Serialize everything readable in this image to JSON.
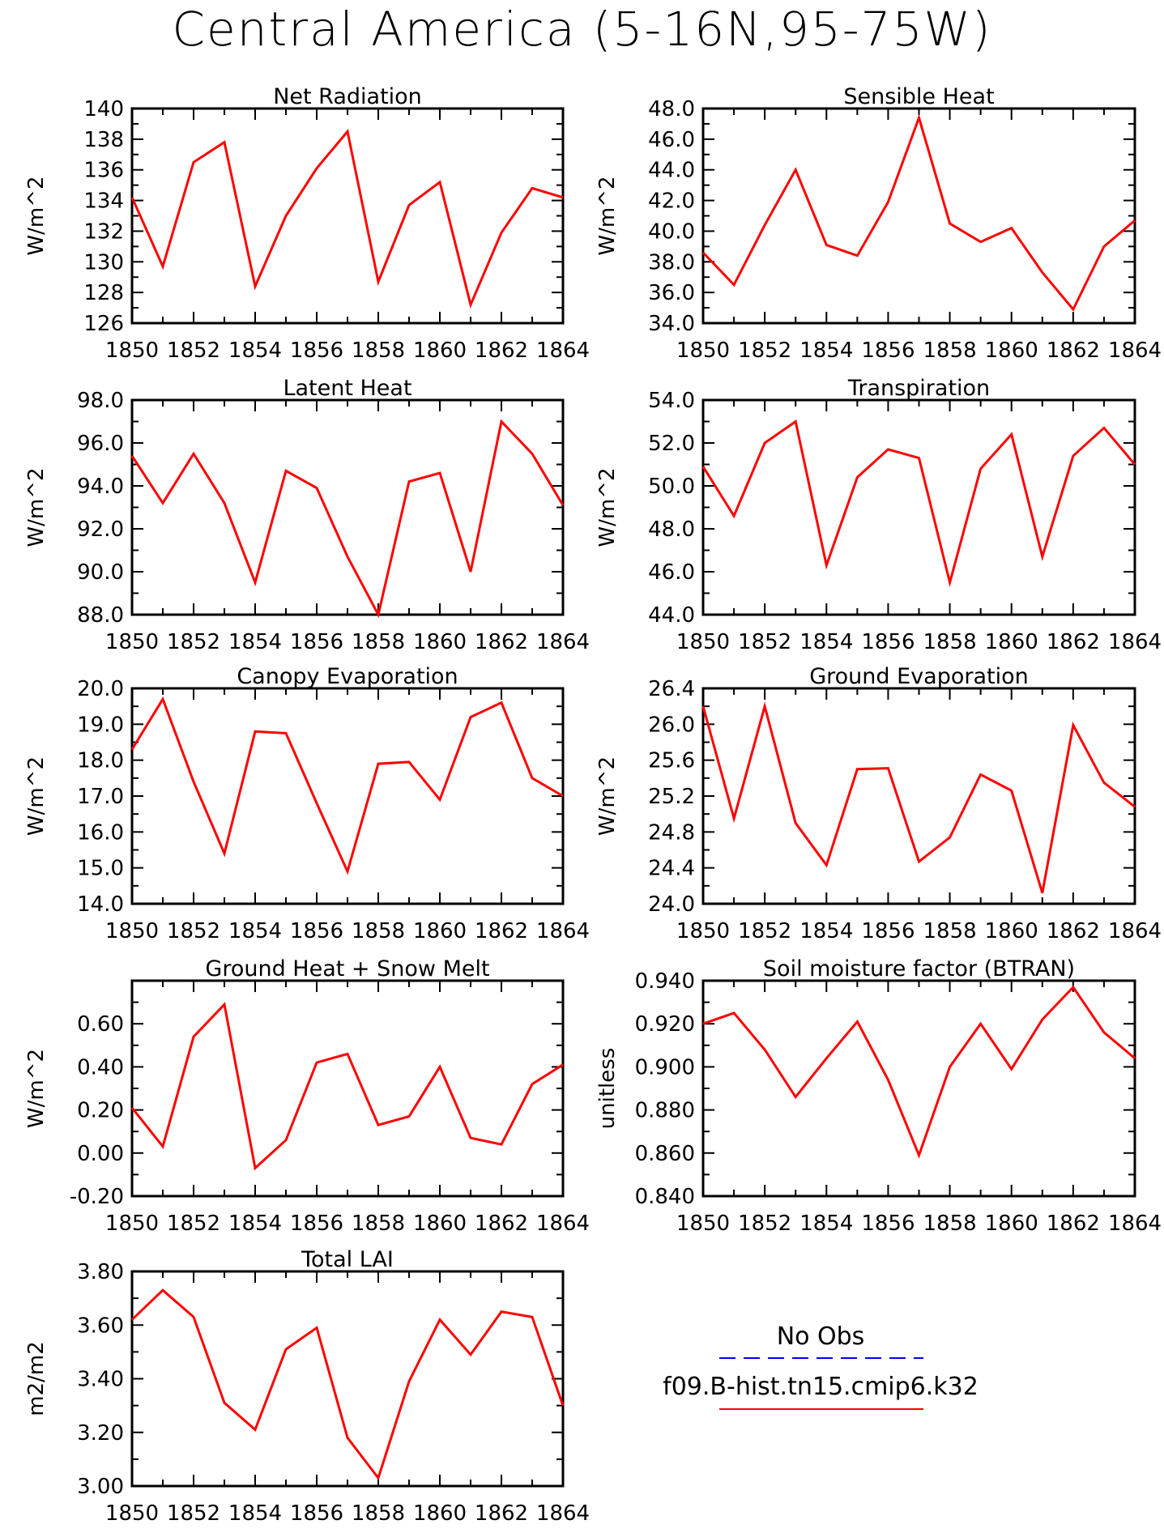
{
  "title": "Central America (5-16N,95-75W)",
  "legend": {
    "entries": [
      {
        "label": "No Obs",
        "color": "#0000ff",
        "style": "dashed"
      },
      {
        "label": "f09.B-hist.tn15.cmip6.k32",
        "color": "#ff0000",
        "style": "solid"
      }
    ]
  },
  "chart_data": [
    {
      "type": "line",
      "title": "Net Radiation",
      "ylabel": "W/m^2",
      "xlabel": "",
      "xlim": [
        1850,
        1864
      ],
      "ylim": [
        126,
        140
      ],
      "yticks": [
        126,
        128,
        130,
        132,
        134,
        136,
        138,
        140
      ],
      "ytick_labels": [
        "126",
        "128",
        "130",
        "132",
        "134",
        "136",
        "138",
        "140"
      ],
      "xticks": [
        1850,
        1852,
        1854,
        1856,
        1858,
        1860,
        1862,
        1864
      ],
      "xtick_labels": [
        "1850",
        "1852",
        "1854",
        "1856",
        "1858",
        "1860",
        "1862",
        "1864"
      ],
      "x": [
        1850,
        1851,
        1852,
        1853,
        1854,
        1855,
        1856,
        1857,
        1858,
        1859,
        1860,
        1861,
        1862,
        1863,
        1864
      ],
      "series": [
        {
          "name": "f09.B-hist.tn15.cmip6.k32",
          "color": "#ff0000",
          "values": [
            134.2,
            129.7,
            136.5,
            137.8,
            128.4,
            133.0,
            136.1,
            138.5,
            128.7,
            133.7,
            135.2,
            127.2,
            131.9,
            134.8,
            134.2
          ]
        }
      ]
    },
    {
      "type": "line",
      "title": "Sensible Heat",
      "ylabel": "W/m^2",
      "xlabel": "",
      "xlim": [
        1850,
        1864
      ],
      "ylim": [
        34,
        48
      ],
      "yticks": [
        34,
        36,
        38,
        40,
        42,
        44,
        46,
        48
      ],
      "ytick_labels": [
        "34.0",
        "36.0",
        "38.0",
        "40.0",
        "42.0",
        "44.0",
        "46.0",
        "48.0"
      ],
      "xticks": [
        1850,
        1852,
        1854,
        1856,
        1858,
        1860,
        1862,
        1864
      ],
      "xtick_labels": [
        "1850",
        "1852",
        "1854",
        "1856",
        "1858",
        "1860",
        "1862",
        "1864"
      ],
      "x": [
        1850,
        1851,
        1852,
        1853,
        1854,
        1855,
        1856,
        1857,
        1858,
        1859,
        1860,
        1861,
        1862,
        1863,
        1864
      ],
      "series": [
        {
          "name": "f09.B-hist.tn15.cmip6.k32",
          "color": "#ff0000",
          "values": [
            38.6,
            36.5,
            40.4,
            44.0,
            39.1,
            38.4,
            41.9,
            47.4,
            40.5,
            39.3,
            40.2,
            37.3,
            34.9,
            39.0,
            40.7
          ]
        }
      ]
    },
    {
      "type": "line",
      "title": "Latent Heat",
      "ylabel": "W/m^2",
      "xlabel": "",
      "xlim": [
        1850,
        1864
      ],
      "ylim": [
        88,
        98
      ],
      "yticks": [
        88,
        90,
        92,
        94,
        96,
        98
      ],
      "ytick_labels": [
        "88.0",
        "90.0",
        "92.0",
        "94.0",
        "96.0",
        "98.0"
      ],
      "xticks": [
        1850,
        1852,
        1854,
        1856,
        1858,
        1860,
        1862,
        1864
      ],
      "xtick_labels": [
        "1850",
        "1852",
        "1854",
        "1856",
        "1858",
        "1860",
        "1862",
        "1864"
      ],
      "x": [
        1850,
        1851,
        1852,
        1853,
        1854,
        1855,
        1856,
        1857,
        1858,
        1859,
        1860,
        1861,
        1862,
        1863,
        1864
      ],
      "series": [
        {
          "name": "f09.B-hist.tn15.cmip6.k32",
          "color": "#ff0000",
          "values": [
            95.4,
            93.2,
            95.5,
            93.2,
            89.5,
            94.7,
            93.9,
            90.7,
            88.0,
            94.2,
            94.6,
            90.0,
            97.0,
            95.5,
            93.1
          ]
        }
      ]
    },
    {
      "type": "line",
      "title": "Transpiration",
      "ylabel": "W/m^2",
      "xlabel": "",
      "xlim": [
        1850,
        1864
      ],
      "ylim": [
        44,
        54
      ],
      "yticks": [
        44,
        46,
        48,
        50,
        52,
        54
      ],
      "ytick_labels": [
        "44.0",
        "46.0",
        "48.0",
        "50.0",
        "52.0",
        "54.0"
      ],
      "xticks": [
        1850,
        1852,
        1854,
        1856,
        1858,
        1860,
        1862,
        1864
      ],
      "xtick_labels": [
        "1850",
        "1852",
        "1854",
        "1856",
        "1858",
        "1860",
        "1862",
        "1864"
      ],
      "x": [
        1850,
        1851,
        1852,
        1853,
        1854,
        1855,
        1856,
        1857,
        1858,
        1859,
        1860,
        1861,
        1862,
        1863,
        1864
      ],
      "series": [
        {
          "name": "f09.B-hist.tn15.cmip6.k32",
          "color": "#ff0000",
          "values": [
            50.9,
            48.6,
            52.0,
            53.0,
            46.3,
            50.4,
            51.7,
            51.3,
            45.5,
            50.8,
            52.4,
            46.7,
            51.4,
            52.7,
            51.0
          ]
        }
      ]
    },
    {
      "type": "line",
      "title": "Canopy Evaporation",
      "ylabel": "W/m^2",
      "xlabel": "",
      "xlim": [
        1850,
        1864
      ],
      "ylim": [
        14,
        20
      ],
      "yticks": [
        14,
        15,
        16,
        17,
        18,
        19,
        20
      ],
      "ytick_labels": [
        "14.0",
        "15.0",
        "16.0",
        "17.0",
        "18.0",
        "19.0",
        "20.0"
      ],
      "xticks": [
        1850,
        1852,
        1854,
        1856,
        1858,
        1860,
        1862,
        1864
      ],
      "xtick_labels": [
        "1850",
        "1852",
        "1854",
        "1856",
        "1858",
        "1860",
        "1862",
        "1864"
      ],
      "x": [
        1850,
        1851,
        1852,
        1853,
        1854,
        1855,
        1856,
        1857,
        1858,
        1859,
        1860,
        1861,
        1862,
        1863,
        1864
      ],
      "series": [
        {
          "name": "f09.B-hist.tn15.cmip6.k32",
          "color": "#ff0000",
          "values": [
            18.3,
            19.7,
            17.4,
            15.4,
            18.8,
            18.75,
            16.8,
            14.9,
            17.9,
            17.95,
            16.9,
            19.2,
            19.6,
            17.5,
            17.0
          ]
        }
      ]
    },
    {
      "type": "line",
      "title": "Ground Evaporation",
      "ylabel": "W/m^2",
      "xlabel": "",
      "xlim": [
        1850,
        1864
      ],
      "ylim": [
        24.0,
        26.4
      ],
      "yticks": [
        24.0,
        24.4,
        24.8,
        25.2,
        25.6,
        26.0,
        26.4
      ],
      "ytick_labels": [
        "24.0",
        "24.4",
        "24.8",
        "25.2",
        "25.6",
        "26.0",
        "26.4"
      ],
      "xticks": [
        1850,
        1852,
        1854,
        1856,
        1858,
        1860,
        1862,
        1864
      ],
      "xtick_labels": [
        "1850",
        "1852",
        "1854",
        "1856",
        "1858",
        "1860",
        "1862",
        "1864"
      ],
      "x": [
        1850,
        1851,
        1852,
        1853,
        1854,
        1855,
        1856,
        1857,
        1858,
        1859,
        1860,
        1861,
        1862,
        1863,
        1864
      ],
      "series": [
        {
          "name": "f09.B-hist.tn15.cmip6.k32",
          "color": "#ff0000",
          "values": [
            26.2,
            24.95,
            26.2,
            24.9,
            24.43,
            25.5,
            25.51,
            24.47,
            24.74,
            25.44,
            25.26,
            24.12,
            25.99,
            25.35,
            25.08
          ]
        }
      ]
    },
    {
      "type": "line",
      "title": "Ground Heat + Snow Melt",
      "ylabel": "W/m^2",
      "xlabel": "",
      "xlim": [
        1850,
        1864
      ],
      "ylim": [
        -0.2,
        0.8
      ],
      "yticks": [
        -0.2,
        0.0,
        0.2,
        0.4,
        0.6
      ],
      "ytick_labels": [
        "-0.20",
        "0.00",
        "0.20",
        "0.40",
        "0.60"
      ],
      "xticks": [
        1850,
        1852,
        1854,
        1856,
        1858,
        1860,
        1862,
        1864
      ],
      "xtick_labels": [
        "1850",
        "1852",
        "1854",
        "1856",
        "1858",
        "1860",
        "1862",
        "1864"
      ],
      "x": [
        1850,
        1851,
        1852,
        1853,
        1854,
        1855,
        1856,
        1857,
        1858,
        1859,
        1860,
        1861,
        1862,
        1863,
        1864
      ],
      "series": [
        {
          "name": "f09.B-hist.tn15.cmip6.k32",
          "color": "#ff0000",
          "values": [
            0.21,
            0.03,
            0.54,
            0.69,
            -0.07,
            0.06,
            0.42,
            0.46,
            0.13,
            0.17,
            0.4,
            0.07,
            0.04,
            0.32,
            0.41
          ]
        }
      ]
    },
    {
      "type": "line",
      "title": "Soil moisture factor (BTRAN)",
      "ylabel": "unitless",
      "xlabel": "",
      "xlim": [
        1850,
        1864
      ],
      "ylim": [
        0.84,
        0.94
      ],
      "yticks": [
        0.84,
        0.86,
        0.88,
        0.9,
        0.92,
        0.94
      ],
      "ytick_labels": [
        "0.840",
        "0.860",
        "0.880",
        "0.900",
        "0.920",
        "0.940"
      ],
      "xticks": [
        1850,
        1852,
        1854,
        1856,
        1858,
        1860,
        1862,
        1864
      ],
      "xtick_labels": [
        "1850",
        "1852",
        "1854",
        "1856",
        "1858",
        "1860",
        "1862",
        "1864"
      ],
      "x": [
        1850,
        1851,
        1852,
        1853,
        1854,
        1855,
        1856,
        1857,
        1858,
        1859,
        1860,
        1861,
        1862,
        1863,
        1864
      ],
      "series": [
        {
          "name": "f09.B-hist.tn15.cmip6.k32",
          "color": "#ff0000",
          "values": [
            0.92,
            0.925,
            0.908,
            0.886,
            0.904,
            0.921,
            0.894,
            0.859,
            0.9,
            0.92,
            0.899,
            0.922,
            0.937,
            0.916,
            0.904
          ]
        }
      ]
    },
    {
      "type": "line",
      "title": "Total LAI",
      "ylabel": "m2/m2",
      "xlabel": "",
      "xlim": [
        1850,
        1864
      ],
      "ylim": [
        3.0,
        3.8
      ],
      "yticks": [
        3.0,
        3.2,
        3.4,
        3.6,
        3.8
      ],
      "ytick_labels": [
        "3.00",
        "3.20",
        "3.40",
        "3.60",
        "3.80"
      ],
      "xticks": [
        1850,
        1852,
        1854,
        1856,
        1858,
        1860,
        1862,
        1864
      ],
      "xtick_labels": [
        "1850",
        "1852",
        "1854",
        "1856",
        "1858",
        "1860",
        "1862",
        "1864"
      ],
      "x": [
        1850,
        1851,
        1852,
        1853,
        1854,
        1855,
        1856,
        1857,
        1858,
        1859,
        1860,
        1861,
        1862,
        1863,
        1864
      ],
      "series": [
        {
          "name": "f09.B-hist.tn15.cmip6.k32",
          "color": "#ff0000",
          "values": [
            3.62,
            3.73,
            3.63,
            3.31,
            3.21,
            3.51,
            3.59,
            3.18,
            3.03,
            3.39,
            3.62,
            3.49,
            3.65,
            3.63,
            3.3
          ]
        }
      ]
    }
  ]
}
